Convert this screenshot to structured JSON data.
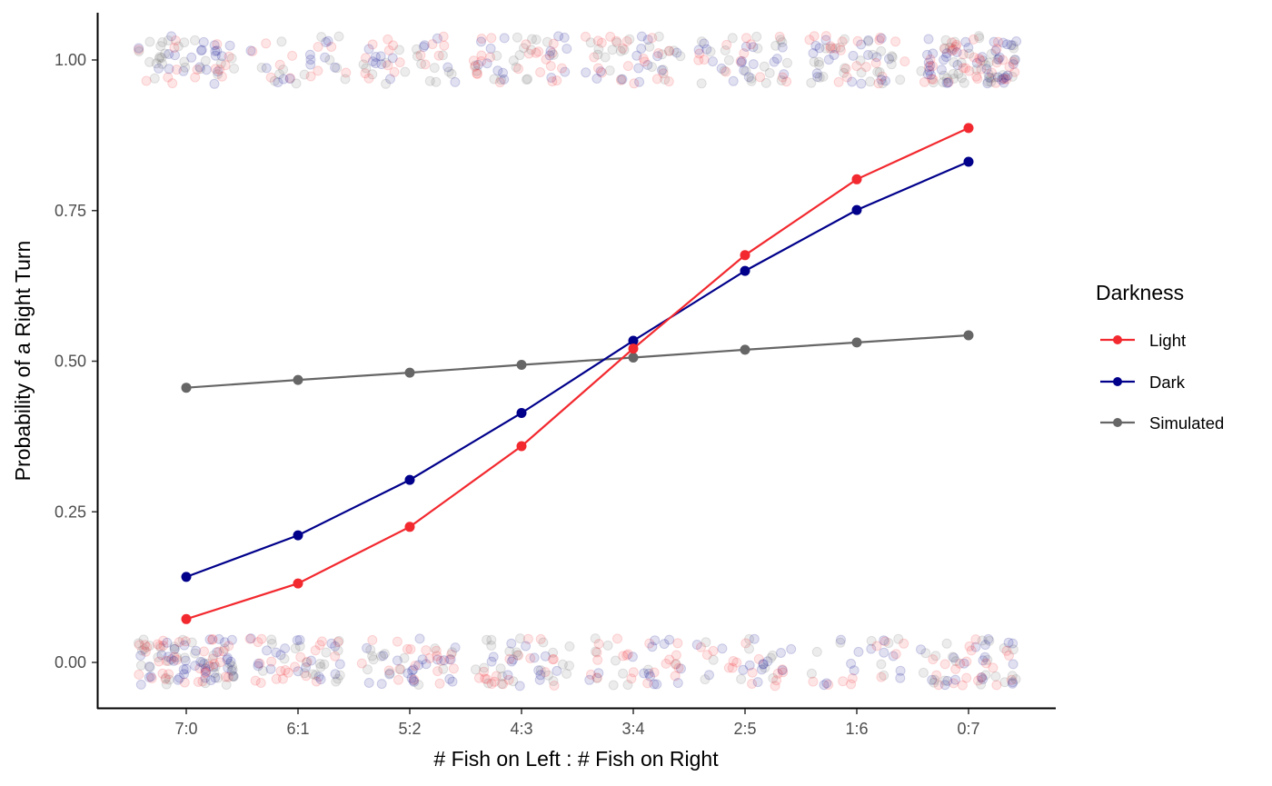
{
  "chart_data": {
    "type": "line",
    "xlabel": "# Fish on Left : # Fish on Right",
    "ylabel": "Probability of a Right Turn",
    "categories": [
      "7:0",
      "6:1",
      "5:2",
      "4:3",
      "3:4",
      "2:5",
      "1:6",
      "0:7"
    ],
    "ylim": [
      -0.07,
      1.08
    ],
    "yticks": [
      0,
      0.25,
      0.5,
      0.75,
      1
    ],
    "ytick_labels": [
      "0.00",
      "0.25",
      "0.50",
      "0.75",
      "1.00"
    ],
    "grid": false,
    "legend": {
      "title": "Darkness",
      "position": "right"
    },
    "series": [
      {
        "name": "Light",
        "color": "#f2292f",
        "values": [
          0.072,
          0.131,
          0.225,
          0.359,
          0.521,
          0.676,
          0.802,
          0.887
        ]
      },
      {
        "name": "Dark",
        "color": "#00008b",
        "values": [
          0.142,
          0.211,
          0.303,
          0.414,
          0.534,
          0.65,
          0.751,
          0.831
        ]
      },
      {
        "name": "Simulated",
        "color": "#666666",
        "values": [
          0.456,
          0.469,
          0.481,
          0.494,
          0.506,
          0.519,
          0.531,
          0.543
        ]
      }
    ],
    "raw_observations": {
      "description_values": [
        0,
        1
      ],
      "jitter": true,
      "alpha": 0.12
    }
  }
}
